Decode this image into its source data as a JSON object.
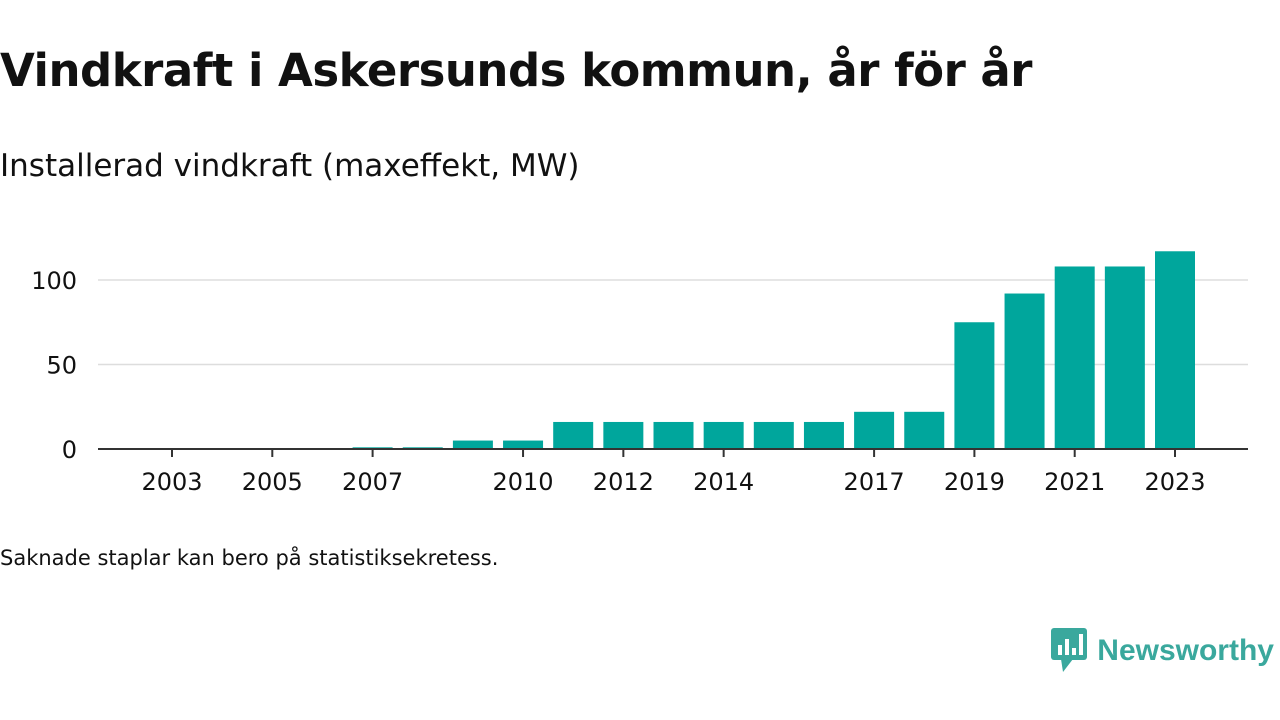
{
  "title": "Vindkraft i Askersunds kommun, år för år",
  "subtitle": "Installerad vindkraft (maxeffekt, MW)",
  "footnote": "Saknade staplar kan bero på statistiksekretess.",
  "brand": {
    "name": "Newsworthy",
    "color": "#3aa89d",
    "icon": "newsworthy-logo-icon"
  },
  "colors": {
    "bar": "#00a69c",
    "grid": "#dddddd",
    "axis": "#333333",
    "text": "#111111"
  },
  "chart_data": {
    "type": "bar",
    "categories": [
      "2003",
      "2004",
      "2005",
      "2006",
      "2007",
      "2008",
      "2009",
      "2010",
      "2011",
      "2012",
      "2013",
      "2014",
      "2015",
      "2016",
      "2017",
      "2018",
      "2019",
      "2020",
      "2021",
      "2022",
      "2023"
    ],
    "values": [
      0,
      0,
      0,
      0,
      1,
      1,
      5,
      5,
      16,
      16,
      16,
      16,
      16,
      16,
      22,
      22,
      75,
      92,
      108,
      108,
      117
    ],
    "x_tick_labels": [
      "2003",
      "2005",
      "2007",
      "2010",
      "2012",
      "2014",
      "2017",
      "2019",
      "2021",
      "2023"
    ],
    "y_ticks": [
      0,
      50,
      100
    ],
    "ylim": [
      0,
      125
    ],
    "title": "Vindkraft i Askersunds kommun, år för år",
    "subtitle": "Installerad vindkraft (maxeffekt, MW)",
    "xlabel": "",
    "ylabel": "",
    "grid": true,
    "legend": "none"
  }
}
